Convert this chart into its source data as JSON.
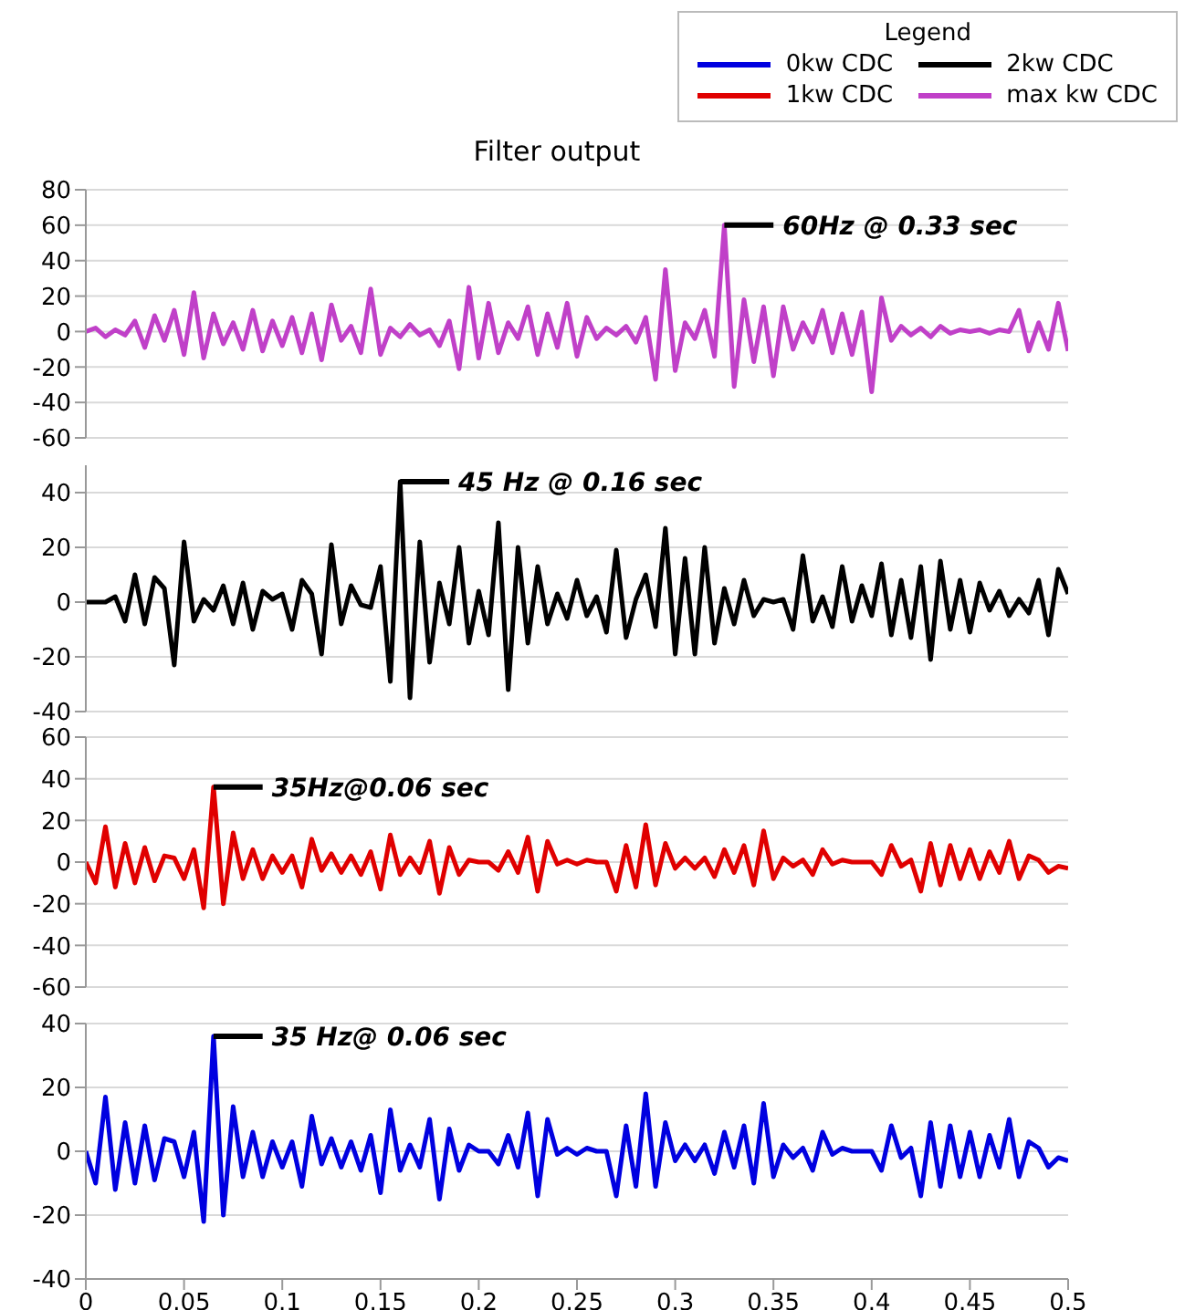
{
  "chart_data": [
    {
      "type": "line",
      "title": "Filter output",
      "legend_title": "Legend",
      "legend": "top right",
      "grid": "y",
      "tick_labels": "y",
      "xlim": [
        0,
        0.5
      ],
      "ylim": [
        -60,
        80
      ],
      "yticks": [
        -60,
        -40,
        -20,
        0,
        20,
        40,
        60,
        80
      ],
      "x": [
        0,
        0.005,
        0.01,
        0.015,
        0.02,
        0.025,
        0.03,
        0.035,
        0.04,
        0.045,
        0.05,
        0.055,
        0.06,
        0.065,
        0.07,
        0.075,
        0.08,
        0.085,
        0.09,
        0.095,
        0.1,
        0.105,
        0.11,
        0.115,
        0.12,
        0.125,
        0.13,
        0.135,
        0.14,
        0.145,
        0.15,
        0.155,
        0.16,
        0.165,
        0.17,
        0.175,
        0.18,
        0.185,
        0.19,
        0.195,
        0.2,
        0.205,
        0.21,
        0.215,
        0.22,
        0.225,
        0.23,
        0.235,
        0.24,
        0.245,
        0.25,
        0.255,
        0.26,
        0.265,
        0.27,
        0.275,
        0.28,
        0.285,
        0.29,
        0.295,
        0.3,
        0.305,
        0.31,
        0.315,
        0.32,
        0.325,
        0.33,
        0.335,
        0.34,
        0.345,
        0.35,
        0.355,
        0.36,
        0.365,
        0.37,
        0.375,
        0.38,
        0.385,
        0.39,
        0.395,
        0.4,
        0.405,
        0.41,
        0.415,
        0.42,
        0.425,
        0.43,
        0.435,
        0.44,
        0.445,
        0.45,
        0.455,
        0.46,
        0.465,
        0.47,
        0.475,
        0.48,
        0.485,
        0.49,
        0.495,
        0.5
      ],
      "series": [
        {
          "name": "max kw CDC",
          "color": "#c040c8",
          "values": [
            0,
            2,
            -3,
            1,
            -2,
            6,
            -9,
            9,
            -5,
            12,
            -13,
            22,
            -15,
            10,
            -7,
            5,
            -10,
            12,
            -11,
            6,
            -8,
            8,
            -12,
            10,
            -16,
            15,
            -5,
            3,
            -12,
            24,
            -13,
            2,
            -3,
            4,
            -2,
            1,
            -8,
            6,
            -21,
            25,
            -15,
            16,
            -12,
            5,
            -4,
            14,
            -13,
            10,
            -9,
            16,
            -14,
            8,
            -4,
            2,
            -2,
            3,
            -6,
            8,
            -27,
            35,
            -22,
            5,
            -4,
            12,
            -14,
            60,
            -31,
            18,
            -17,
            14,
            -25,
            14,
            -10,
            5,
            -6,
            12,
            -12,
            10,
            -13,
            11,
            -34,
            19,
            -5,
            3,
            -2,
            2,
            -3,
            3,
            -1,
            1,
            0,
            1,
            -1,
            1,
            0,
            12,
            -11,
            5,
            -10,
            16,
            -11
          ]
        }
      ],
      "annotations": [
        {
          "text": "60Hz @ 0.33 sec",
          "x": 0.325,
          "y": 60
        }
      ]
    },
    {
      "type": "line",
      "grid": "y",
      "tick_labels": "y",
      "xlim": [
        0,
        0.5
      ],
      "ylim": [
        -40,
        50
      ],
      "yticks": [
        -40,
        -20,
        0,
        20,
        40
      ],
      "x": [
        0,
        0.005,
        0.01,
        0.015,
        0.02,
        0.025,
        0.03,
        0.035,
        0.04,
        0.045,
        0.05,
        0.055,
        0.06,
        0.065,
        0.07,
        0.075,
        0.08,
        0.085,
        0.09,
        0.095,
        0.1,
        0.105,
        0.11,
        0.115,
        0.12,
        0.125,
        0.13,
        0.135,
        0.14,
        0.145,
        0.15,
        0.155,
        0.16,
        0.165,
        0.17,
        0.175,
        0.18,
        0.185,
        0.19,
        0.195,
        0.2,
        0.205,
        0.21,
        0.215,
        0.22,
        0.225,
        0.23,
        0.235,
        0.24,
        0.245,
        0.25,
        0.255,
        0.26,
        0.265,
        0.27,
        0.275,
        0.28,
        0.285,
        0.29,
        0.295,
        0.3,
        0.305,
        0.31,
        0.315,
        0.32,
        0.325,
        0.33,
        0.335,
        0.34,
        0.345,
        0.35,
        0.355,
        0.36,
        0.365,
        0.37,
        0.375,
        0.38,
        0.385,
        0.39,
        0.395,
        0.4,
        0.405,
        0.41,
        0.415,
        0.42,
        0.425,
        0.43,
        0.435,
        0.44,
        0.445,
        0.45,
        0.455,
        0.46,
        0.465,
        0.47,
        0.475,
        0.48,
        0.485,
        0.49,
        0.495,
        0.5
      ],
      "series": [
        {
          "name": "2kw CDC",
          "color": "#000000",
          "values": [
            0,
            0,
            0,
            2,
            -7,
            10,
            -8,
            9,
            5,
            -23,
            22,
            -7,
            1,
            -3,
            6,
            -8,
            7,
            -10,
            4,
            1,
            3,
            -10,
            8,
            3,
            -19,
            21,
            -8,
            6,
            -1,
            -2,
            13,
            -29,
            44,
            -35,
            22,
            -22,
            7,
            -8,
            20,
            -15,
            4,
            -12,
            29,
            -32,
            20,
            -15,
            13,
            -8,
            3,
            -6,
            8,
            -5,
            2,
            -11,
            19,
            -13,
            1,
            10,
            -9,
            27,
            -19,
            16,
            -19,
            20,
            -15,
            5,
            -8,
            8,
            -5,
            1,
            0,
            1,
            -10,
            17,
            -7,
            2,
            -9,
            13,
            -7,
            6,
            -5,
            14,
            -12,
            8,
            -13,
            13,
            -21,
            15,
            -10,
            8,
            -11,
            7,
            -3,
            4,
            -5,
            1,
            -4,
            8,
            -12,
            12,
            3
          ]
        }
      ],
      "annotations": [
        {
          "text": "45 Hz @ 0.16 sec",
          "x": 0.16,
          "y": 44
        }
      ]
    },
    {
      "type": "line",
      "grid": "y",
      "tick_labels": "y",
      "xlim": [
        0,
        0.5
      ],
      "ylim": [
        -60,
        60
      ],
      "yticks": [
        -60,
        -40,
        -20,
        0,
        20,
        40,
        60
      ],
      "x": [
        0,
        0.005,
        0.01,
        0.015,
        0.02,
        0.025,
        0.03,
        0.035,
        0.04,
        0.045,
        0.05,
        0.055,
        0.06,
        0.065,
        0.07,
        0.075,
        0.08,
        0.085,
        0.09,
        0.095,
        0.1,
        0.105,
        0.11,
        0.115,
        0.12,
        0.125,
        0.13,
        0.135,
        0.14,
        0.145,
        0.15,
        0.155,
        0.16,
        0.165,
        0.17,
        0.175,
        0.18,
        0.185,
        0.19,
        0.195,
        0.2,
        0.205,
        0.21,
        0.215,
        0.22,
        0.225,
        0.23,
        0.235,
        0.24,
        0.245,
        0.25,
        0.255,
        0.26,
        0.265,
        0.27,
        0.275,
        0.28,
        0.285,
        0.29,
        0.295,
        0.3,
        0.305,
        0.31,
        0.315,
        0.32,
        0.325,
        0.33,
        0.335,
        0.34,
        0.345,
        0.35,
        0.355,
        0.36,
        0.365,
        0.37,
        0.375,
        0.38,
        0.385,
        0.39,
        0.395,
        0.4,
        0.405,
        0.41,
        0.415,
        0.42,
        0.425,
        0.43,
        0.435,
        0.44,
        0.445,
        0.45,
        0.455,
        0.46,
        0.465,
        0.47,
        0.475,
        0.48,
        0.485,
        0.49,
        0.495,
        0.5
      ],
      "series": [
        {
          "name": "1kw CDC",
          "color": "#e00000",
          "values": [
            0,
            -10,
            17,
            -12,
            9,
            -10,
            7,
            -9,
            3,
            2,
            -8,
            6,
            -22,
            36,
            -20,
            14,
            -8,
            6,
            -8,
            3,
            -5,
            3,
            -12,
            11,
            -4,
            4,
            -5,
            3,
            -6,
            5,
            -13,
            13,
            -6,
            2,
            -5,
            10,
            -15,
            7,
            -6,
            1,
            0,
            0,
            -4,
            5,
            -5,
            12,
            -14,
            10,
            -1,
            1,
            -1,
            1,
            0,
            0,
            -14,
            8,
            -12,
            18,
            -11,
            9,
            -3,
            2,
            -3,
            2,
            -7,
            6,
            -5,
            8,
            -11,
            15,
            -8,
            2,
            -2,
            1,
            -6,
            6,
            -1,
            1,
            0,
            0,
            0,
            -6,
            8,
            -2,
            1,
            -14,
            9,
            -11,
            8,
            -8,
            6,
            -8,
            5,
            -5,
            10,
            -8,
            3,
            1,
            -5,
            -2,
            -3
          ]
        }
      ],
      "annotations": [
        {
          "text": "35Hz@0.06 sec",
          "x": 0.065,
          "y": 36
        }
      ]
    },
    {
      "type": "line",
      "grid": "y",
      "xlim": [
        0,
        0.5
      ],
      "xticks": [
        0,
        0.05,
        0.1,
        0.15,
        0.2,
        0.25,
        0.3,
        0.35,
        0.4,
        0.45,
        0.5
      ],
      "ylim": [
        -40,
        40
      ],
      "yticks": [
        -40,
        -20,
        0,
        20,
        40
      ],
      "x": [
        0,
        0.005,
        0.01,
        0.015,
        0.02,
        0.025,
        0.03,
        0.035,
        0.04,
        0.045,
        0.05,
        0.055,
        0.06,
        0.065,
        0.07,
        0.075,
        0.08,
        0.085,
        0.09,
        0.095,
        0.1,
        0.105,
        0.11,
        0.115,
        0.12,
        0.125,
        0.13,
        0.135,
        0.14,
        0.145,
        0.15,
        0.155,
        0.16,
        0.165,
        0.17,
        0.175,
        0.18,
        0.185,
        0.19,
        0.195,
        0.2,
        0.205,
        0.21,
        0.215,
        0.22,
        0.225,
        0.23,
        0.235,
        0.24,
        0.245,
        0.25,
        0.255,
        0.26,
        0.265,
        0.27,
        0.275,
        0.28,
        0.285,
        0.29,
        0.295,
        0.3,
        0.305,
        0.31,
        0.315,
        0.32,
        0.325,
        0.33,
        0.335,
        0.34,
        0.345,
        0.35,
        0.355,
        0.36,
        0.365,
        0.37,
        0.375,
        0.38,
        0.385,
        0.39,
        0.395,
        0.4,
        0.405,
        0.41,
        0.415,
        0.42,
        0.425,
        0.43,
        0.435,
        0.44,
        0.445,
        0.45,
        0.455,
        0.46,
        0.465,
        0.47,
        0.475,
        0.48,
        0.485,
        0.49,
        0.495,
        0.5
      ],
      "series": [
        {
          "name": "0kw CDC",
          "color": "#0000e0",
          "values": [
            0,
            -10,
            17,
            -12,
            9,
            -10,
            8,
            -9,
            4,
            3,
            -8,
            6,
            -22,
            36,
            -20,
            14,
            -8,
            6,
            -8,
            3,
            -5,
            3,
            -11,
            11,
            -4,
            4,
            -5,
            3,
            -6,
            5,
            -13,
            13,
            -6,
            2,
            -5,
            10,
            -15,
            7,
            -6,
            2,
            0,
            0,
            -4,
            5,
            -5,
            12,
            -14,
            10,
            -1,
            1,
            -1,
            1,
            0,
            0,
            -14,
            8,
            -11,
            18,
            -11,
            9,
            -3,
            2,
            -3,
            2,
            -7,
            6,
            -5,
            8,
            -10,
            15,
            -8,
            2,
            -2,
            1,
            -6,
            6,
            -1,
            1,
            0,
            0,
            0,
            -6,
            8,
            -2,
            1,
            -14,
            9,
            -11,
            8,
            -8,
            6,
            -8,
            5,
            -5,
            10,
            -8,
            3,
            1,
            -5,
            -2,
            -3
          ]
        }
      ],
      "annotations": [
        {
          "text": "35 Hz@ 0.06 sec",
          "x": 0.065,
          "y": 36
        }
      ]
    }
  ]
}
